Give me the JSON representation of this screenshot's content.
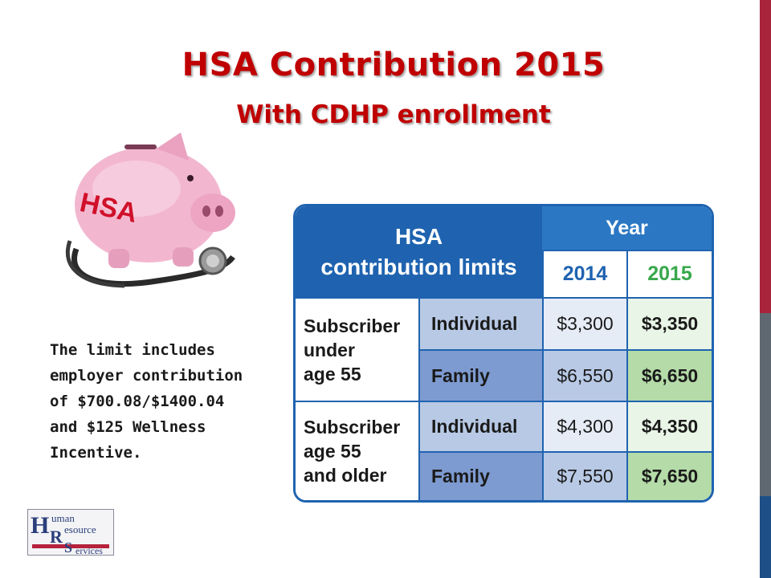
{
  "slide": {
    "title": "HSA Contribution 2015",
    "subtitle": "With CDHP enrollment",
    "note": "The limit includes\nemployer contribution\nof $700.08/$1400.04\nand $125 Wellness\nIncentive."
  },
  "piggy_image": {
    "label": "HSA"
  },
  "table": {
    "header_line1": "HSA",
    "header_line2": "contribution limits",
    "year_label": "Year",
    "years": [
      "2014",
      "2015"
    ],
    "groups": [
      {
        "label_lines": [
          "Subscriber",
          "under",
          "age 55"
        ],
        "rows": [
          {
            "type": "Individual",
            "v2014": "$3,300",
            "v2015": "$3,350"
          },
          {
            "type": "Family",
            "v2014": "$6,550",
            "v2015": "$6,650"
          }
        ]
      },
      {
        "label_lines": [
          "Subscriber",
          "age 55",
          "and older"
        ],
        "rows": [
          {
            "type": "Individual",
            "v2014": "$4,300",
            "v2015": "$4,350"
          },
          {
            "type": "Family",
            "v2014": "$7,550",
            "v2015": "$7,650"
          }
        ]
      }
    ]
  },
  "logo": {
    "line1": "uman",
    "line2": "esource",
    "line3": "ervices",
    "initials": [
      "H",
      "R",
      "S"
    ]
  },
  "colors": {
    "accent_red": "#a8243a",
    "accent_gray": "#5f6870",
    "accent_blue": "#1e4f86",
    "title_red": "#c00000",
    "table_blue": "#1f63b0",
    "year_green": "#38a84c"
  }
}
